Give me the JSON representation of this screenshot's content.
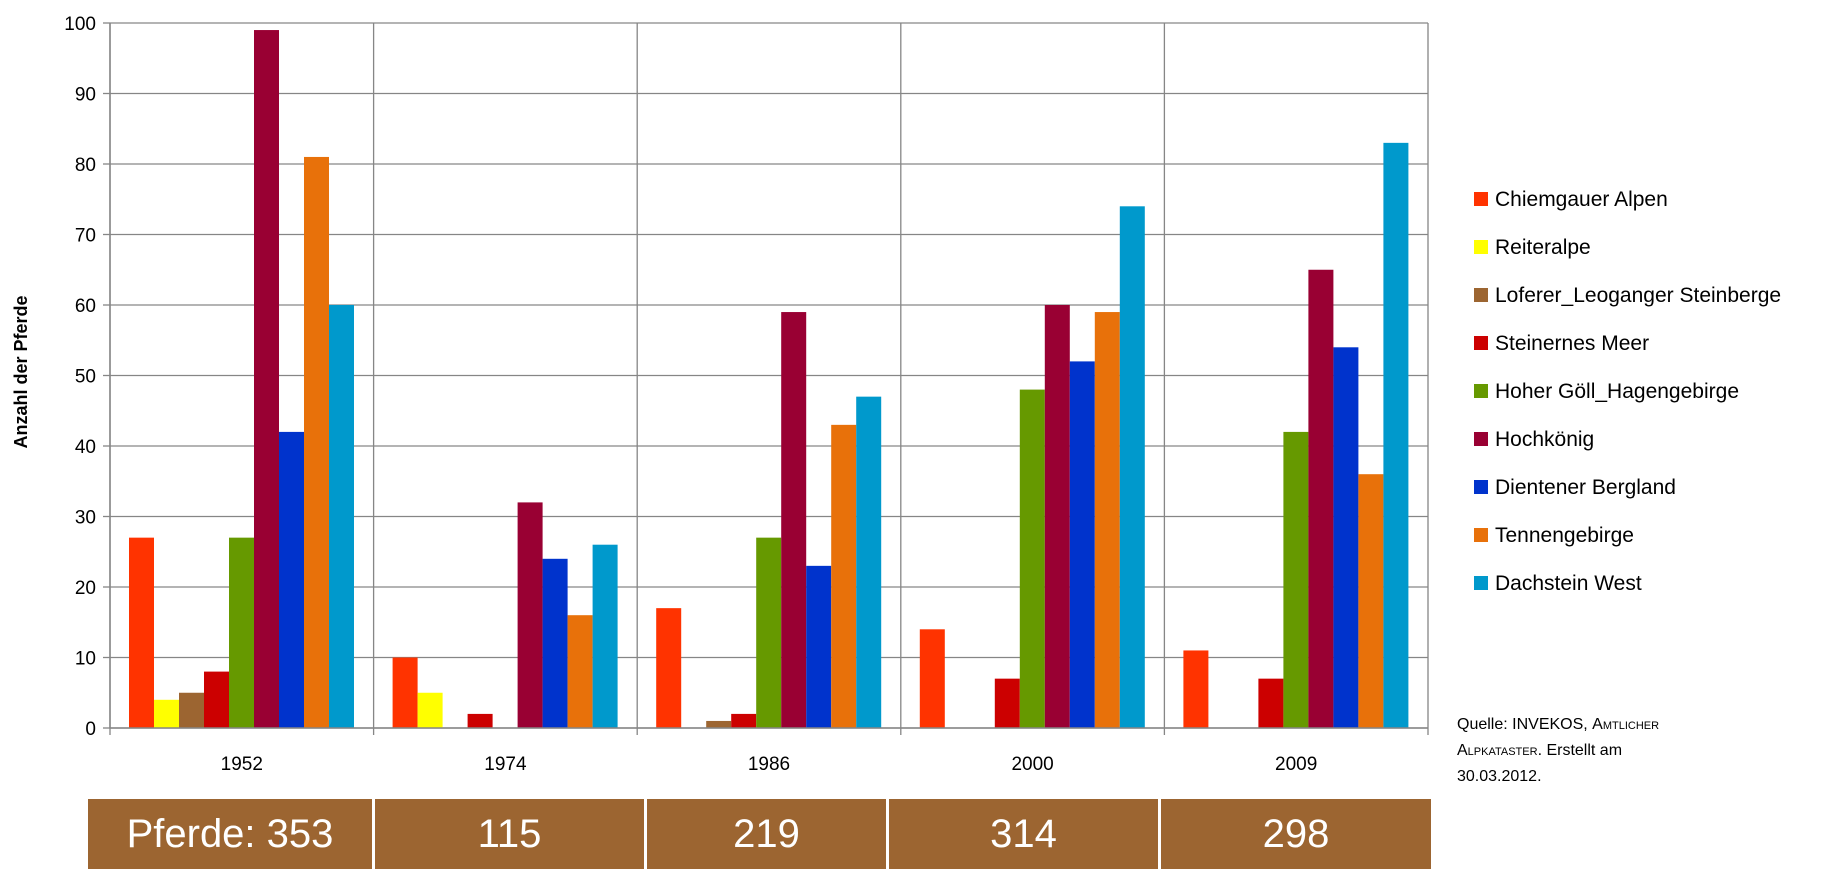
{
  "chart_data": {
    "type": "bar",
    "categories": [
      "1952",
      "1974",
      "1986",
      "2000",
      "2009"
    ],
    "ylabel": "Anzahl der  Pferde",
    "ylim": [
      0,
      100
    ],
    "yticks": [
      "0",
      "10",
      "20",
      "30",
      "40",
      "50",
      "60",
      "70",
      "80",
      "90",
      "100"
    ],
    "grid": true,
    "legend_position": "right",
    "series": [
      {
        "name": "Chiemgauer Alpen",
        "color": "#ff3300",
        "values": [
          27,
          10,
          17,
          14,
          11
        ]
      },
      {
        "name": "Reiteralpe",
        "color": "#ffff00",
        "values": [
          4,
          5,
          0,
          0,
          0
        ]
      },
      {
        "name": "Loferer_Leoganger Steinberge",
        "color": "#9c6531",
        "values": [
          5,
          0,
          1,
          0,
          0
        ]
      },
      {
        "name": "Steinernes Meer",
        "color": "#cc0000",
        "values": [
          8,
          2,
          2,
          7,
          7
        ]
      },
      {
        "name": "Hoher Göll_Hagengebirge",
        "color": "#669900",
        "values": [
          27,
          0,
          27,
          48,
          42
        ]
      },
      {
        "name": "Hochkönig",
        "color": "#990033",
        "values": [
          99,
          32,
          59,
          60,
          65
        ]
      },
      {
        "name": "Dientener  Bergland",
        "color": "#0033cc",
        "values": [
          42,
          24,
          23,
          52,
          54
        ]
      },
      {
        "name": "Tennengebirge",
        "color": "#e8710a",
        "values": [
          81,
          16,
          43,
          59,
          36
        ]
      },
      {
        "name": "Dachstein West",
        "color": "#0099cc",
        "values": [
          60,
          26,
          47,
          74,
          83
        ]
      }
    ]
  },
  "source": {
    "line1_prefix": "Quelle: INVEKOS, ",
    "line1_caps": "Amtlicher",
    "line2_caps": "Alpkataster",
    "line2_suffix": ".  Erstellt am",
    "line3": "30.03.2012."
  },
  "totals": [
    "Pferde: 353",
    "115",
    "219",
    "314",
    "298"
  ]
}
